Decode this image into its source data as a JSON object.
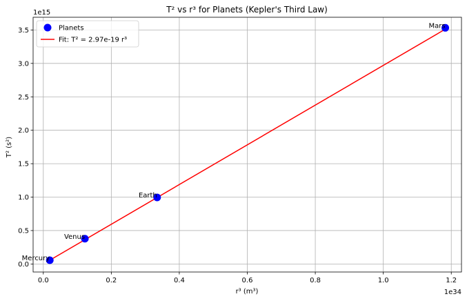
{
  "chart_data": {
    "type": "scatter",
    "title": "T² vs r³ for Planets (Kepler's Third Law)",
    "xlabel": "r³ (m³)",
    "ylabel": "T² (s²)",
    "x_offset_label": "1e34",
    "y_offset_label": "1e15",
    "x_scale": 1e+34,
    "y_scale": 1000000000000000.0,
    "xlim": [
      -0.03,
      1.23
    ],
    "ylim": [
      -0.12,
      3.69
    ],
    "x_ticks": [
      0.0,
      0.2,
      0.4,
      0.6,
      0.8,
      1.0,
      1.2
    ],
    "x_tick_labels": [
      "0.0",
      "0.2",
      "0.4",
      "0.6",
      "0.8",
      "1.0",
      "1.2"
    ],
    "y_ticks": [
      0.0,
      0.5,
      1.0,
      1.5,
      2.0,
      2.5,
      3.0,
      3.5
    ],
    "y_tick_labels": [
      "0.0",
      "0.5",
      "1.0",
      "1.5",
      "2.0",
      "2.5",
      "3.0",
      "3.5"
    ],
    "grid": true,
    "legend_position": "upper-left",
    "series": [
      {
        "name": "Planets",
        "kind": "scatter",
        "color": "#0000ff",
        "points": [
          {
            "label": "Mercury",
            "x": 0.0191,
            "y": 0.0558
          },
          {
            "label": "Venus",
            "x": 0.1223,
            "y": 0.3777
          },
          {
            "label": "Earth",
            "x": 0.3348,
            "y": 0.9957
          },
          {
            "label": "Mars",
            "x": 1.1824,
            "y": 3.532
          }
        ]
      },
      {
        "name": "Fit: T² = 2.97e-19 r³",
        "kind": "line",
        "color": "#ff0000",
        "x": [
          0.0191,
          1.1824
        ],
        "y": [
          0.0567,
          3.5117
        ]
      }
    ]
  }
}
